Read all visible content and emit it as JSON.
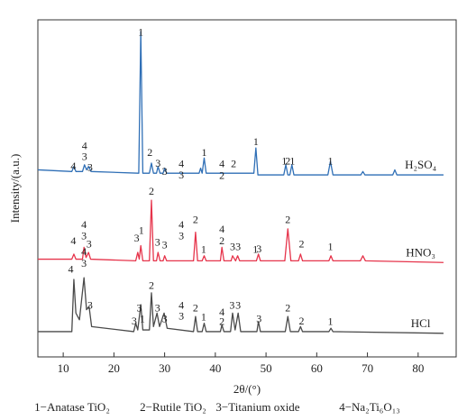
{
  "chart_data": {
    "type": "line",
    "x_label": "2θ/(°)",
    "y_label": "Intensity/(a.u.)",
    "xlim": [
      5,
      87.5
    ],
    "ylim": [
      0,
      100
    ],
    "xticks": [
      10,
      20,
      30,
      40,
      50,
      60,
      70,
      80
    ],
    "legend": [
      "1−Anatase TiO₂",
      "2−Rutile TiO₂",
      "3−Titanium oxide",
      "4−Na₂Ti₆O₁₃"
    ],
    "series": [
      {
        "name": "H₂SO₄",
        "color": "#2f6fb6",
        "x": [
          5,
          11.7,
          12.1,
          12.5,
          13.8,
          14.2,
          14.6,
          15.0,
          15.5,
          24.9,
          25.3,
          25.7,
          27.0,
          27.4,
          27.8,
          28.4,
          28.7,
          29.1,
          29.7,
          30.0,
          30.4,
          36.8,
          37.1,
          37.4,
          37.8,
          38.2,
          47.6,
          48.0,
          48.4,
          53.5,
          53.9,
          54.3,
          54.7,
          55.1,
          55.5,
          62.2,
          62.7,
          63.2,
          68.7,
          69.1,
          69.5,
          75,
          75.4,
          75.8,
          85
        ],
        "values": [
          55.5,
          55,
          56.5,
          55,
          55,
          57,
          55.5,
          56.5,
          55,
          54.5,
          96.5,
          54.5,
          54.5,
          57.5,
          54.5,
          54.5,
          56.5,
          54.5,
          54.5,
          56,
          54.5,
          54.5,
          56,
          54.5,
          59,
          54.5,
          54.5,
          62,
          54,
          54,
          57,
          54,
          54,
          57,
          54,
          54,
          58,
          54,
          54,
          55,
          54,
          54,
          55.5,
          54,
          54
        ],
        "annotations": [
          {
            "text": "1",
            "x": 25.3,
            "y": 96
          },
          {
            "text": "4",
            "x": 12.0,
            "y": 56.4
          },
          {
            "text": "4",
            "x": 14.2,
            "y": 62.3
          },
          {
            "text": "3",
            "x": 14.2,
            "y": 59.1
          },
          {
            "text": "3",
            "x": 15.3,
            "y": 55.9
          },
          {
            "text": "2",
            "x": 27.1,
            "y": 60.4
          },
          {
            "text": "3",
            "x": 28.7,
            "y": 57.2
          },
          {
            "text": "3",
            "x": 30.0,
            "y": 54.8
          },
          {
            "text": "4",
            "x": 33.3,
            "y": 57
          },
          {
            "text": "3",
            "x": 33.3,
            "y": 53.7
          },
          {
            "text": "1",
            "x": 37.8,
            "y": 60.4
          },
          {
            "text": "4",
            "x": 41.3,
            "y": 57
          },
          {
            "text": "2",
            "x": 41.3,
            "y": 53.5
          },
          {
            "text": "2",
            "x": 43.6,
            "y": 57
          },
          {
            "text": "1",
            "x": 48.0,
            "y": 63.6
          },
          {
            "text": "1",
            "x": 53.6,
            "y": 57.8
          },
          {
            "text": "2",
            "x": 54.3,
            "y": 57.8
          },
          {
            "text": "1",
            "x": 55.2,
            "y": 57.8
          },
          {
            "text": "1",
            "x": 62.7,
            "y": 57.8
          }
        ]
      },
      {
        "name": "HNO₃",
        "color": "#e6344b",
        "x": [
          5,
          11.7,
          12.1,
          12.5,
          13.8,
          14.1,
          14.5,
          15.0,
          15.4,
          24.3,
          24.7,
          25.0,
          25.3,
          25.7,
          27.0,
          27.4,
          27.8,
          28.4,
          28.7,
          29.1,
          29.7,
          30.0,
          30.4,
          35.7,
          36.1,
          36.5,
          37.4,
          37.8,
          38.2,
          41.0,
          41.3,
          41.7,
          43.1,
          43.4,
          44.0,
          44.4,
          44.8,
          48.1,
          48.5,
          48.9,
          53.7,
          54.3,
          54.9,
          56.4,
          56.8,
          57.2,
          62.4,
          62.8,
          63.2,
          68.6,
          69.1,
          69.6,
          85
        ],
        "values": [
          29,
          29,
          30.5,
          29,
          29,
          32.5,
          29.5,
          31,
          29,
          28.5,
          31,
          29,
          33,
          28.5,
          28.5,
          46.5,
          28.5,
          28.5,
          31,
          28.5,
          28.5,
          30,
          28.5,
          28.5,
          37,
          28.5,
          28.5,
          30,
          28.5,
          28.5,
          32.5,
          28.5,
          28.5,
          30,
          28.5,
          30,
          28.5,
          28.5,
          30.5,
          28.5,
          28.5,
          38,
          28.5,
          28.5,
          30.5,
          28.5,
          28.5,
          30,
          28.5,
          28.5,
          30,
          28.5,
          28
        ],
        "annotations": [
          {
            "text": "4",
            "x": 12.0,
            "y": 34.2
          },
          {
            "text": "4",
            "x": 14.1,
            "y": 39
          },
          {
            "text": "3",
            "x": 14.1,
            "y": 35.6
          },
          {
            "text": "3",
            "x": 15.1,
            "y": 33.2
          },
          {
            "text": "3",
            "x": 24.5,
            "y": 35
          },
          {
            "text": "1",
            "x": 25.4,
            "y": 37.2
          },
          {
            "text": "2",
            "x": 27.4,
            "y": 48.9
          },
          {
            "text": "3",
            "x": 28.6,
            "y": 33.7
          },
          {
            "text": "3",
            "x": 30.0,
            "y": 32.9
          },
          {
            "text": "4",
            "x": 33.3,
            "y": 39
          },
          {
            "text": "3",
            "x": 33.3,
            "y": 35.6
          },
          {
            "text": "2",
            "x": 36.1,
            "y": 40.4
          },
          {
            "text": "1",
            "x": 37.7,
            "y": 31.6
          },
          {
            "text": "4",
            "x": 41.3,
            "y": 37.7
          },
          {
            "text": "2",
            "x": 41.3,
            "y": 34.2
          },
          {
            "text": "3",
            "x": 43.4,
            "y": 32.4
          },
          {
            "text": "3",
            "x": 44.5,
            "y": 32.4
          },
          {
            "text": "1",
            "x": 47.9,
            "y": 31.6
          },
          {
            "text": "3",
            "x": 48.6,
            "y": 31.8
          },
          {
            "text": "2",
            "x": 54.3,
            "y": 40.4
          },
          {
            "text": "2",
            "x": 57.0,
            "y": 33.2
          },
          {
            "text": "1",
            "x": 62.7,
            "y": 32.4
          }
        ]
      },
      {
        "name": "HCl",
        "color": "#4a4a4a",
        "x": [
          5,
          11.7,
          12.1,
          12.5,
          13.2,
          14.1,
          14.6,
          15.1,
          15.6,
          23.9,
          24.3,
          24.7,
          25.3,
          25.7,
          27.0,
          27.4,
          27.8,
          28.5,
          29.0,
          29.9,
          30.5,
          35.7,
          36.1,
          36.5,
          37.4,
          37.8,
          38.2,
          41.0,
          41.3,
          41.7,
          43.0,
          43.4,
          43.9,
          44.5,
          45.0,
          48.2,
          48.5,
          48.9,
          53.8,
          54.3,
          54.8,
          56.4,
          56.8,
          57.2,
          62.4,
          62.8,
          63.2,
          85
        ],
        "values": [
          7.5,
          7.5,
          23,
          13,
          11,
          23.5,
          14,
          15,
          9,
          7.5,
          10,
          8,
          15.5,
          8,
          8,
          19,
          9,
          13,
          9,
          13,
          8.5,
          7.5,
          12,
          7.5,
          7.5,
          10,
          7.5,
          7.5,
          9.5,
          7.5,
          7.5,
          13,
          8,
          13,
          7.5,
          7.5,
          10.5,
          7.5,
          7.5,
          12,
          7.5,
          7.5,
          9,
          7.5,
          7.5,
          8.5,
          7.5,
          7
        ],
        "annotations": [
          {
            "text": "4",
            "x": 11.5,
            "y": 25.7
          },
          {
            "text": "4",
            "x": 14.1,
            "y": 31
          },
          {
            "text": "3",
            "x": 14.1,
            "y": 27.5
          },
          {
            "text": "3",
            "x": 15.3,
            "y": 15
          },
          {
            "text": "3",
            "x": 24.0,
            "y": 10.4
          },
          {
            "text": "3",
            "x": 25.0,
            "y": 14.2
          },
          {
            "text": "1",
            "x": 25.6,
            "y": 11
          },
          {
            "text": "2",
            "x": 27.4,
            "y": 20.9
          },
          {
            "text": "3",
            "x": 28.6,
            "y": 14.2
          },
          {
            "text": "3",
            "x": 30.0,
            "y": 11
          },
          {
            "text": "4",
            "x": 33.3,
            "y": 15
          },
          {
            "text": "3",
            "x": 33.3,
            "y": 11.8
          },
          {
            "text": "2",
            "x": 36.1,
            "y": 14.2
          },
          {
            "text": "1",
            "x": 37.7,
            "y": 11.5
          },
          {
            "text": "4",
            "x": 41.3,
            "y": 13.1
          },
          {
            "text": "2",
            "x": 41.3,
            "y": 10.2
          },
          {
            "text": "3",
            "x": 43.3,
            "y": 15
          },
          {
            "text": "3",
            "x": 44.5,
            "y": 15
          },
          {
            "text": "3",
            "x": 48.6,
            "y": 11
          },
          {
            "text": "2",
            "x": 54.3,
            "y": 14.2
          },
          {
            "text": "2",
            "x": 57.0,
            "y": 10.4
          },
          {
            "text": "1",
            "x": 62.7,
            "y": 10.2
          }
        ]
      }
    ]
  }
}
